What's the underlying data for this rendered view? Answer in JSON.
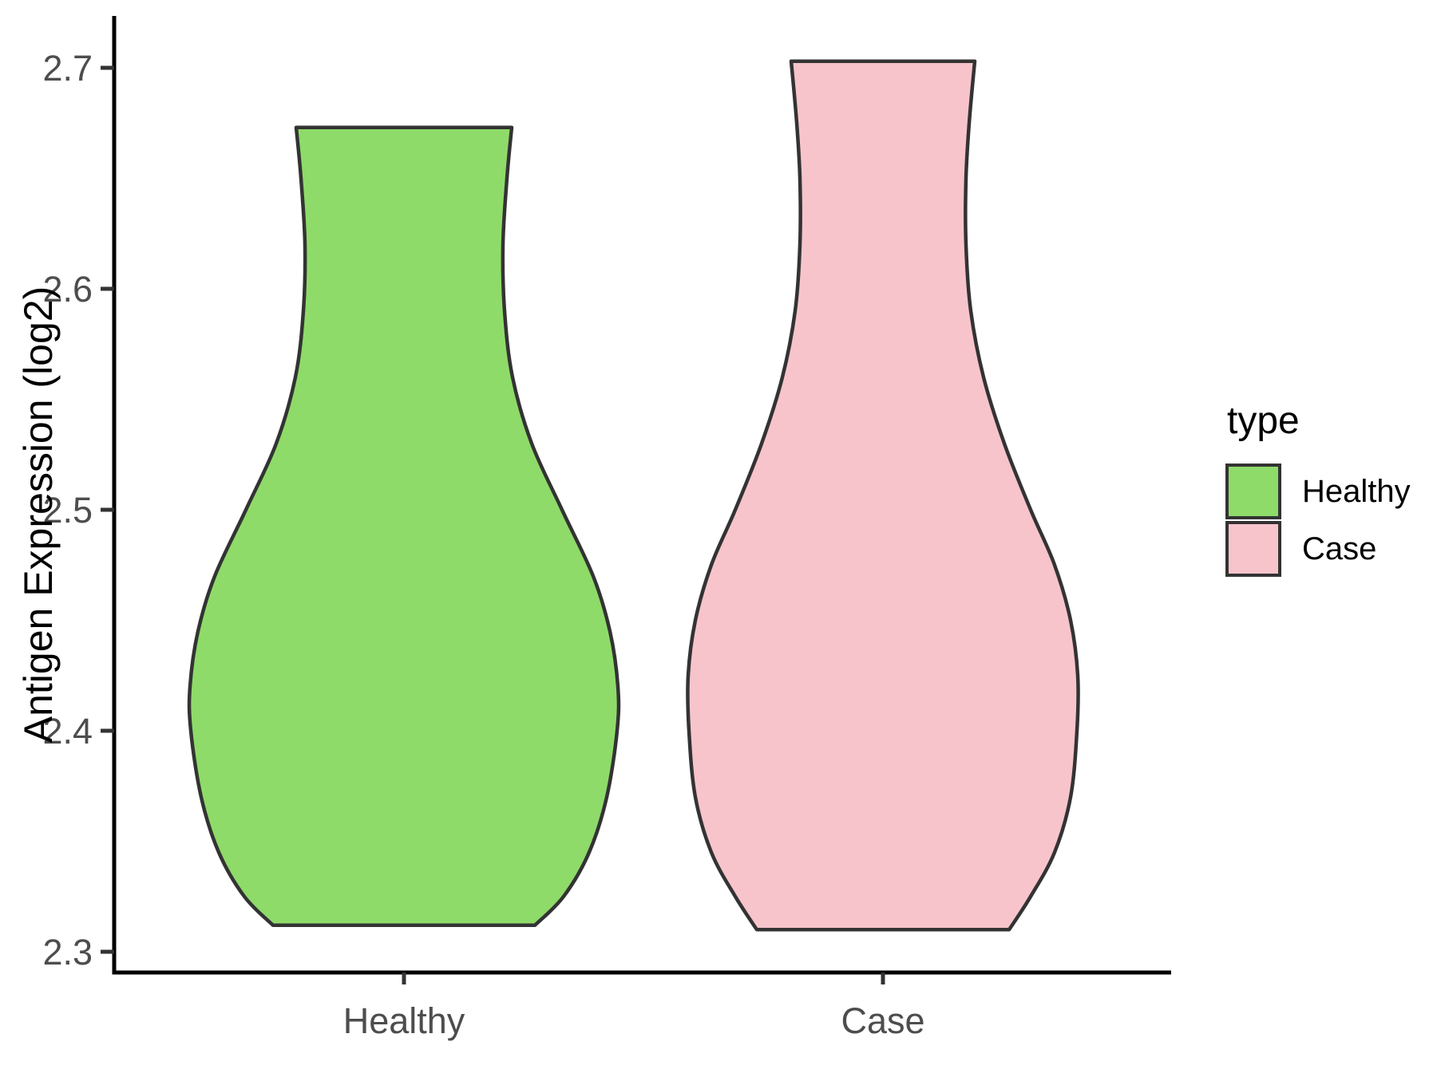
{
  "chart_data": {
    "type": "violin",
    "title": "",
    "xlabel": "",
    "ylabel": "Antigen Expression (log2)",
    "ylim": [
      2.29,
      2.723
    ],
    "grid": "off",
    "y_ticks": [
      "2.3",
      "2.4",
      "2.5",
      "2.6",
      "2.7"
    ],
    "y_tick_values": [
      2.3,
      2.4,
      2.5,
      2.6,
      2.7
    ],
    "categories": [
      "Healthy",
      "Case"
    ],
    "stroke_color": "#333333",
    "axis_line_color": "#000000",
    "tick_label_color": "#4d4d4d",
    "legend": {
      "position": "right",
      "title": "type",
      "entries": [
        {
          "label": "Healthy",
          "color": "#8EDB69"
        },
        {
          "label": "Case",
          "color": "#F7C4CB"
        }
      ]
    },
    "series": [
      {
        "name": "Healthy",
        "color": "#8EDB69",
        "value_range": [
          2.312,
          2.673
        ],
        "density_profile": [
          [
            2.312,
            164
          ],
          [
            2.325,
            200
          ],
          [
            2.345,
            232
          ],
          [
            2.37,
            254
          ],
          [
            2.4,
            267
          ],
          [
            2.42,
            268
          ],
          [
            2.445,
            258
          ],
          [
            2.47,
            237
          ],
          [
            2.5,
            198
          ],
          [
            2.53,
            160
          ],
          [
            2.56,
            136
          ],
          [
            2.59,
            126
          ],
          [
            2.62,
            124
          ],
          [
            2.65,
            129
          ],
          [
            2.673,
            135
          ]
        ]
      },
      {
        "name": "Case",
        "color": "#F7C4CB",
        "value_range": [
          2.31,
          2.703
        ],
        "density_profile": [
          [
            2.31,
            158
          ],
          [
            2.325,
            185
          ],
          [
            2.345,
            215
          ],
          [
            2.37,
            235
          ],
          [
            2.4,
            243
          ],
          [
            2.425,
            244
          ],
          [
            2.45,
            235
          ],
          [
            2.475,
            215
          ],
          [
            2.5,
            185
          ],
          [
            2.53,
            152
          ],
          [
            2.56,
            126
          ],
          [
            2.59,
            110
          ],
          [
            2.62,
            104
          ],
          [
            2.65,
            104
          ],
          [
            2.675,
            108
          ],
          [
            2.703,
            115
          ]
        ]
      }
    ]
  }
}
